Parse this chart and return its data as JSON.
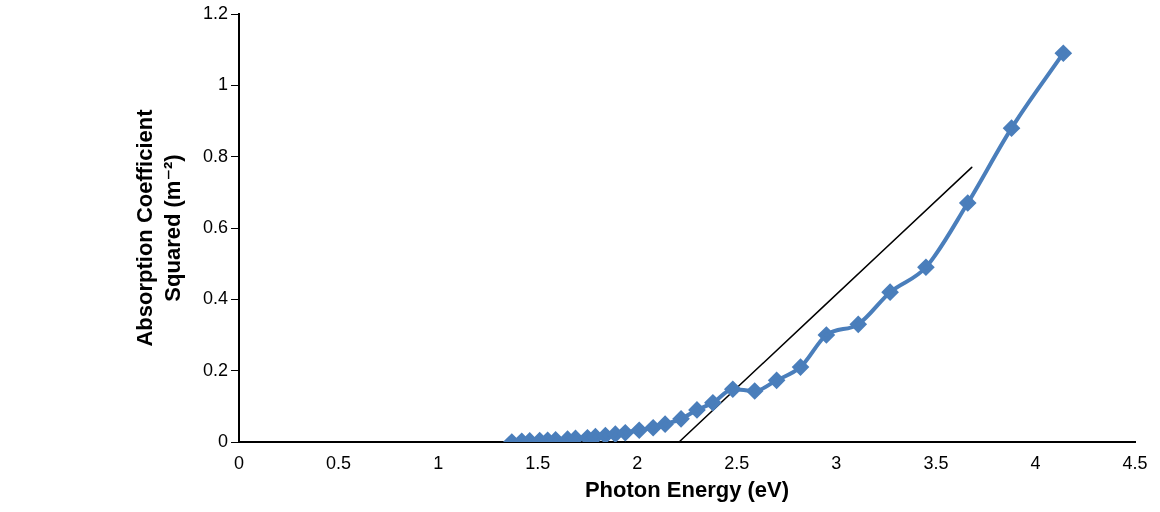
{
  "chart_data": {
    "type": "line",
    "xlabel": "Photon Energy (eV)",
    "ylabel": "Absorption Coefficient\nSquared (m⁻²)",
    "xlim": [
      0,
      4.5
    ],
    "xticks": [
      0,
      0.5,
      1,
      1.5,
      2,
      2.5,
      3,
      3.5,
      4,
      4.5
    ],
    "ylim": [
      0,
      1.2
    ],
    "yticks": [
      0,
      0.2,
      0.4,
      0.6,
      0.8,
      1,
      1.2
    ],
    "grid": false,
    "legend": false,
    "marker": "diamond",
    "line_style": "solid",
    "series": [
      {
        "color": "#4a7ebb",
        "x": [
          1.37,
          1.42,
          1.46,
          1.51,
          1.55,
          1.59,
          1.65,
          1.69,
          1.75,
          1.79,
          1.84,
          1.89,
          1.94,
          2.01,
          2.08,
          2.14,
          2.22,
          2.3,
          2.38,
          2.48,
          2.59,
          2.7,
          2.82,
          2.95,
          3.11,
          3.27,
          3.45,
          3.66,
          3.88,
          4.14
        ],
        "values": [
          0,
          0.002,
          0.003,
          0.004,
          0.005,
          0.006,
          0.008,
          0.01,
          0.012,
          0.015,
          0.018,
          0.022,
          0.026,
          0.033,
          0.04,
          0.05,
          0.065,
          0.09,
          0.11,
          0.148,
          0.143,
          0.173,
          0.21,
          0.3,
          0.33,
          0.42,
          0.49,
          0.67,
          0.88,
          1.09
        ]
      },
      {
        "type": "line",
        "marker": "none",
        "color": "#000000",
        "x": [
          2.21,
          3.68
        ],
        "values": [
          0,
          0.77
        ]
      }
    ]
  }
}
